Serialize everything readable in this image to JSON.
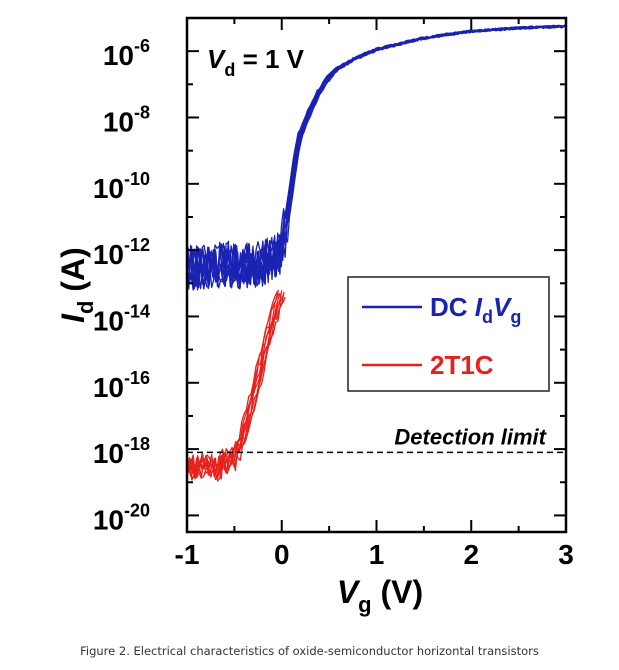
{
  "caption": "Figure 2. Electrical characteristics of oxide-semiconductor horizontal transistors",
  "colors": {
    "blue": "#1a22b4",
    "red": "#e8201c",
    "axis": "#000000"
  },
  "chart_data": {
    "type": "line",
    "title": "",
    "annotation": {
      "base": "V",
      "sub": "d",
      "rest": " = 1 V"
    },
    "xlabel": {
      "base": "V",
      "sub": "g",
      "unit": " (V)"
    },
    "ylabel": {
      "base": "I",
      "sub": "d",
      "unit": " (A)"
    },
    "xlim": [
      -1,
      3
    ],
    "ylim_log10": [
      -20.5,
      -5
    ],
    "x_ticks": [
      {
        "value": -1,
        "label": "-1"
      },
      {
        "value": 0,
        "label": "0"
      },
      {
        "value": 1,
        "label": "1"
      },
      {
        "value": 2,
        "label": "2"
      },
      {
        "value": 3,
        "label": "3"
      }
    ],
    "y_ticks": [
      {
        "exp": -6,
        "base": "10",
        "sup": "-6"
      },
      {
        "exp": -8,
        "base": "10",
        "sup": "-8"
      },
      {
        "exp": -10,
        "base": "10",
        "sup": "-10"
      },
      {
        "exp": -12,
        "base": "10",
        "sup": "-12"
      },
      {
        "exp": -14,
        "base": "10",
        "sup": "-14"
      },
      {
        "exp": -16,
        "base": "10",
        "sup": "-16"
      },
      {
        "exp": -18,
        "base": "10",
        "sup": "-18"
      },
      {
        "exp": -20,
        "base": "10",
        "sup": "-20"
      }
    ],
    "detection_limit": {
      "label": "Detection limit",
      "value_log10": -18.1
    },
    "legend": {
      "position": "right",
      "entries": [
        {
          "series": "dc",
          "parts": [
            "DC ",
            "I",
            "d",
            "V",
            "g"
          ]
        },
        {
          "series": "t2c",
          "parts": [
            "2T1C"
          ]
        }
      ]
    },
    "series": [
      {
        "name": "DC IdVg",
        "key": "dc",
        "color": "#1a22b4",
        "x": [
          -1.0,
          -0.8,
          -0.6,
          -0.4,
          -0.2,
          0.0,
          0.05,
          0.1,
          0.15,
          0.2,
          0.3,
          0.4,
          0.5,
          0.6,
          0.8,
          1.0,
          1.5,
          2.0,
          2.5,
          3.0
        ],
        "log10y": [
          -12.5,
          -12.5,
          -12.4,
          -12.5,
          -12.4,
          -12.1,
          -11.2,
          -10.2,
          -9.2,
          -8.5,
          -7.8,
          -7.2,
          -6.8,
          -6.5,
          -6.2,
          -5.95,
          -5.6,
          -5.4,
          -5.3,
          -5.25
        ]
      },
      {
        "name": "2T1C",
        "key": "t2c",
        "color": "#e8201c",
        "x": [
          -1.0,
          -0.85,
          -0.7,
          -0.6,
          -0.5,
          -0.45,
          -0.4,
          -0.3,
          -0.2,
          -0.1,
          0.0
        ],
        "log10y": [
          -18.6,
          -18.5,
          -18.6,
          -18.4,
          -18.3,
          -18.0,
          -17.6,
          -16.5,
          -15.3,
          -14.2,
          -13.3
        ]
      }
    ]
  }
}
